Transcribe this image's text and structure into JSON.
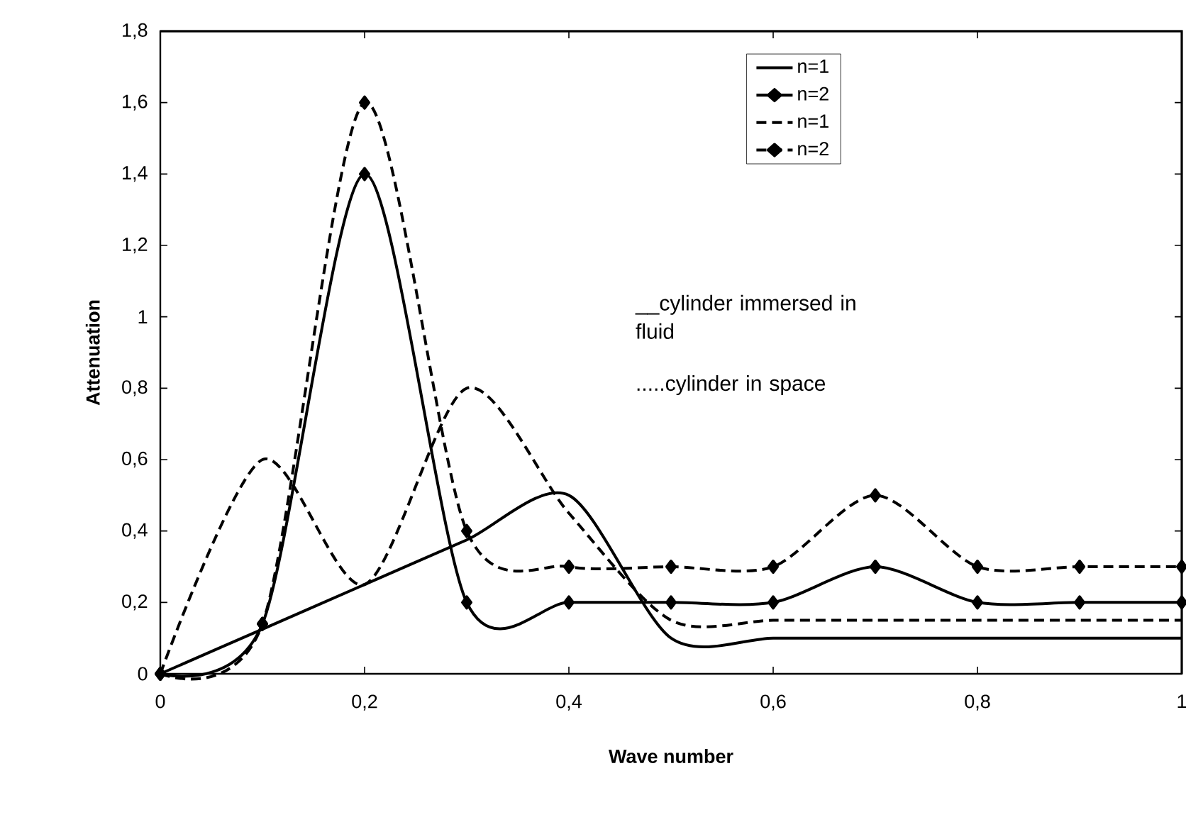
{
  "chart_data": {
    "type": "line",
    "xlabel": "Wave number",
    "ylabel": "Attenuation",
    "x": [
      0,
      0.1,
      0.2,
      0.3,
      0.4,
      0.5,
      0.6,
      0.7,
      0.8,
      0.9,
      1
    ],
    "series": [
      {
        "name": "n=1",
        "color": "#000000",
        "line_style": "solid",
        "marker": "none",
        "values": [
          0,
          0.125,
          0.25,
          0.375,
          0.5,
          0.1,
          0.1,
          0.1,
          0.1,
          0.1,
          0.1
        ]
      },
      {
        "name": "n=2",
        "color": "#000000",
        "line_style": "solid",
        "marker": "diamond",
        "values": [
          0,
          0.14,
          1.4,
          0.2,
          0.2,
          0.2,
          0.2,
          0.3,
          0.2,
          0.2,
          0.2
        ]
      },
      {
        "name": "n=1",
        "color": "#000000",
        "line_style": "dashed",
        "marker": "none",
        "values": [
          0,
          0.6,
          0.25,
          0.8,
          0.45,
          0.15,
          0.15,
          0.15,
          0.15,
          0.15,
          0.15
        ]
      },
      {
        "name": "n=2",
        "color": "#000000",
        "line_style": "dashed",
        "marker": "diamond",
        "values": [
          0,
          0.14,
          1.6,
          0.4,
          0.3,
          0.3,
          0.3,
          0.5,
          0.3,
          0.3,
          0.3
        ]
      }
    ],
    "xlim": [
      0,
      1
    ],
    "ylim": [
      0,
      1.8
    ],
    "xticks": [
      0,
      {
        "value": 0.2,
        "label": "0,2"
      },
      {
        "value": 0.4,
        "label": "0,4"
      },
      {
        "value": 0.6,
        "label": "0,6"
      },
      {
        "value": 0.8,
        "label": "0,8"
      },
      1
    ],
    "yticks": [
      0,
      {
        "value": 0.2,
        "label": "0,2"
      },
      {
        "value": 0.4,
        "label": "0,4"
      },
      {
        "value": 0.6,
        "label": "0,6"
      },
      {
        "value": 0.8,
        "label": "0,8"
      },
      1,
      {
        "value": 1.2,
        "label": "1,2"
      },
      {
        "value": 1.4,
        "label": "1,4"
      },
      {
        "value": 1.6,
        "label": "1,6"
      },
      {
        "value": 1.8,
        "label": "1,8"
      }
    ],
    "grid": false,
    "legend": "top right",
    "annotations": [
      "__cylinder immersed in fluid",
      ".....cylinder in space"
    ]
  }
}
